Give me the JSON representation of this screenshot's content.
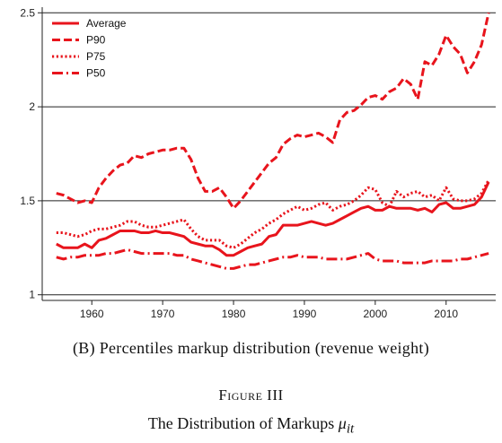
{
  "chart_data": {
    "type": "line",
    "x": [
      1955,
      1956,
      1957,
      1958,
      1959,
      1960,
      1961,
      1962,
      1963,
      1964,
      1965,
      1966,
      1967,
      1968,
      1969,
      1970,
      1971,
      1972,
      1973,
      1974,
      1975,
      1976,
      1977,
      1978,
      1979,
      1980,
      1981,
      1982,
      1983,
      1984,
      1985,
      1986,
      1987,
      1988,
      1989,
      1990,
      1991,
      1992,
      1993,
      1994,
      1995,
      1996,
      1997,
      1998,
      1999,
      2000,
      2001,
      2002,
      2003,
      2004,
      2005,
      2006,
      2007,
      2008,
      2009,
      2010,
      2011,
      2012,
      2013,
      2014,
      2015,
      2016
    ],
    "series": [
      {
        "name": "Average",
        "style": "solid",
        "color": "#e8141c",
        "values": [
          1.27,
          1.25,
          1.25,
          1.25,
          1.27,
          1.25,
          1.29,
          1.3,
          1.32,
          1.34,
          1.34,
          1.34,
          1.33,
          1.33,
          1.34,
          1.33,
          1.33,
          1.32,
          1.31,
          1.28,
          1.27,
          1.26,
          1.26,
          1.24,
          1.21,
          1.21,
          1.23,
          1.25,
          1.26,
          1.27,
          1.31,
          1.32,
          1.37,
          1.37,
          1.37,
          1.38,
          1.39,
          1.38,
          1.37,
          1.38,
          1.4,
          1.42,
          1.44,
          1.46,
          1.47,
          1.45,
          1.45,
          1.47,
          1.46,
          1.46,
          1.46,
          1.45,
          1.46,
          1.44,
          1.48,
          1.49,
          1.46,
          1.46,
          1.47,
          1.48,
          1.52,
          1.6
        ]
      },
      {
        "name": "P90",
        "style": "dashed",
        "color": "#e8141c",
        "values": [
          1.54,
          1.53,
          1.51,
          1.49,
          1.5,
          1.49,
          1.57,
          1.62,
          1.66,
          1.69,
          1.7,
          1.74,
          1.73,
          1.75,
          1.76,
          1.77,
          1.77,
          1.78,
          1.78,
          1.72,
          1.62,
          1.55,
          1.55,
          1.57,
          1.52,
          1.46,
          1.5,
          1.55,
          1.6,
          1.65,
          1.7,
          1.73,
          1.8,
          1.83,
          1.85,
          1.84,
          1.85,
          1.86,
          1.84,
          1.81,
          1.93,
          1.97,
          1.98,
          2.01,
          2.05,
          2.06,
          2.04,
          2.08,
          2.1,
          2.15,
          2.12,
          2.04,
          2.24,
          2.22,
          2.28,
          2.38,
          2.32,
          2.28,
          2.18,
          2.24,
          2.33,
          2.5
        ]
      },
      {
        "name": "P75",
        "style": "dotted",
        "color": "#e8141c",
        "values": [
          1.33,
          1.33,
          1.32,
          1.31,
          1.32,
          1.34,
          1.35,
          1.35,
          1.36,
          1.37,
          1.39,
          1.39,
          1.37,
          1.36,
          1.36,
          1.37,
          1.38,
          1.39,
          1.4,
          1.35,
          1.31,
          1.29,
          1.29,
          1.29,
          1.26,
          1.25,
          1.27,
          1.3,
          1.33,
          1.35,
          1.38,
          1.4,
          1.43,
          1.45,
          1.47,
          1.45,
          1.46,
          1.48,
          1.49,
          1.45,
          1.47,
          1.48,
          1.5,
          1.53,
          1.57,
          1.56,
          1.49,
          1.47,
          1.55,
          1.52,
          1.54,
          1.55,
          1.52,
          1.53,
          1.5,
          1.57,
          1.51,
          1.5,
          1.5,
          1.51,
          1.54,
          1.61
        ]
      },
      {
        "name": "P50",
        "style": "dashdot",
        "color": "#e8141c",
        "values": [
          1.2,
          1.19,
          1.2,
          1.2,
          1.21,
          1.21,
          1.21,
          1.22,
          1.22,
          1.23,
          1.24,
          1.23,
          1.22,
          1.22,
          1.22,
          1.22,
          1.22,
          1.21,
          1.21,
          1.19,
          1.18,
          1.17,
          1.16,
          1.15,
          1.14,
          1.14,
          1.15,
          1.16,
          1.16,
          1.17,
          1.18,
          1.19,
          1.2,
          1.2,
          1.21,
          1.2,
          1.2,
          1.2,
          1.19,
          1.19,
          1.19,
          1.19,
          1.2,
          1.21,
          1.22,
          1.19,
          1.18,
          1.18,
          1.18,
          1.17,
          1.17,
          1.17,
          1.17,
          1.18,
          1.18,
          1.18,
          1.18,
          1.19,
          1.19,
          1.2,
          1.21,
          1.22
        ]
      }
    ],
    "xticks": [
      "1960",
      "1970",
      "1980",
      "1990",
      "2000",
      "2010"
    ],
    "yticks": [
      "1",
      "1.5",
      "2",
      "2.5"
    ],
    "xlim": [
      1953,
      2017
    ],
    "ylim": [
      0.97,
      2.53
    ],
    "grid": "horizontal",
    "legend": "top-left"
  },
  "caption": {
    "subcaption": "(B)  Percentiles  markup  distribution (revenue weight)",
    "figure": "Figure III",
    "title_text": "The Distribution of Markups ",
    "title_math": "μ",
    "title_sub": "it"
  }
}
